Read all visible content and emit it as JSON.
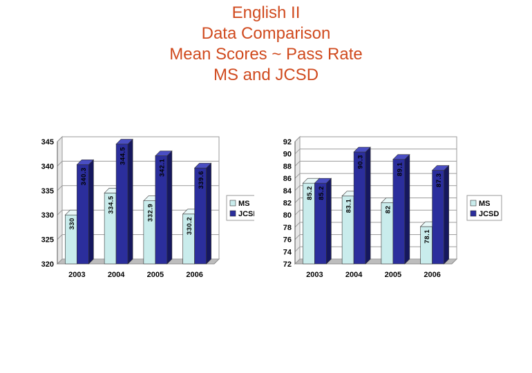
{
  "title": {
    "line1": "English II",
    "line2": "Data Comparison",
    "line3": "Mean Scores ~ Pass Rate",
    "line4": "MS and JCSD"
  },
  "colors": {
    "ms": "#c9ecec",
    "ms_side": "#8fc4c4",
    "ms_top": "#e8f8f8",
    "jcsd": "#2b2e9c",
    "jcsd_side": "#15175e",
    "jcsd_top": "#4a4ec2",
    "title": "#d04a1e"
  },
  "chart_data": [
    {
      "type": "bar",
      "categories": [
        "2003",
        "2004",
        "2005",
        "2006"
      ],
      "series": [
        {
          "name": "MS",
          "values": [
            330,
            334.5,
            332.9,
            330.2
          ],
          "labels": [
            "330",
            "334.5",
            "332.9",
            "330.2"
          ]
        },
        {
          "name": "JCSD",
          "values": [
            340.3,
            344.5,
            342.1,
            339.6
          ],
          "labels": [
            "340.3",
            "344.5",
            "342.1",
            "339.6"
          ]
        }
      ],
      "ylim": [
        320,
        345
      ],
      "yticks": [
        320,
        325,
        330,
        335,
        340,
        345
      ],
      "grid": true,
      "legend": "right"
    },
    {
      "type": "bar",
      "categories": [
        "2003",
        "2004",
        "2005",
        "2006"
      ],
      "series": [
        {
          "name": "MS",
          "values": [
            85.2,
            83.1,
            82,
            78.1
          ],
          "labels": [
            "85.2",
            "83.1",
            "82",
            "78.1"
          ]
        },
        {
          "name": "JCSD",
          "values": [
            85.2,
            90.3,
            89.1,
            87.3
          ],
          "labels": [
            "85.2",
            "90.3",
            "89.1",
            "87.3"
          ]
        }
      ],
      "ylim": [
        72,
        92
      ],
      "yticks": [
        72,
        74,
        76,
        78,
        80,
        82,
        84,
        86,
        88,
        90,
        92
      ],
      "grid": true,
      "legend": "right"
    }
  ]
}
